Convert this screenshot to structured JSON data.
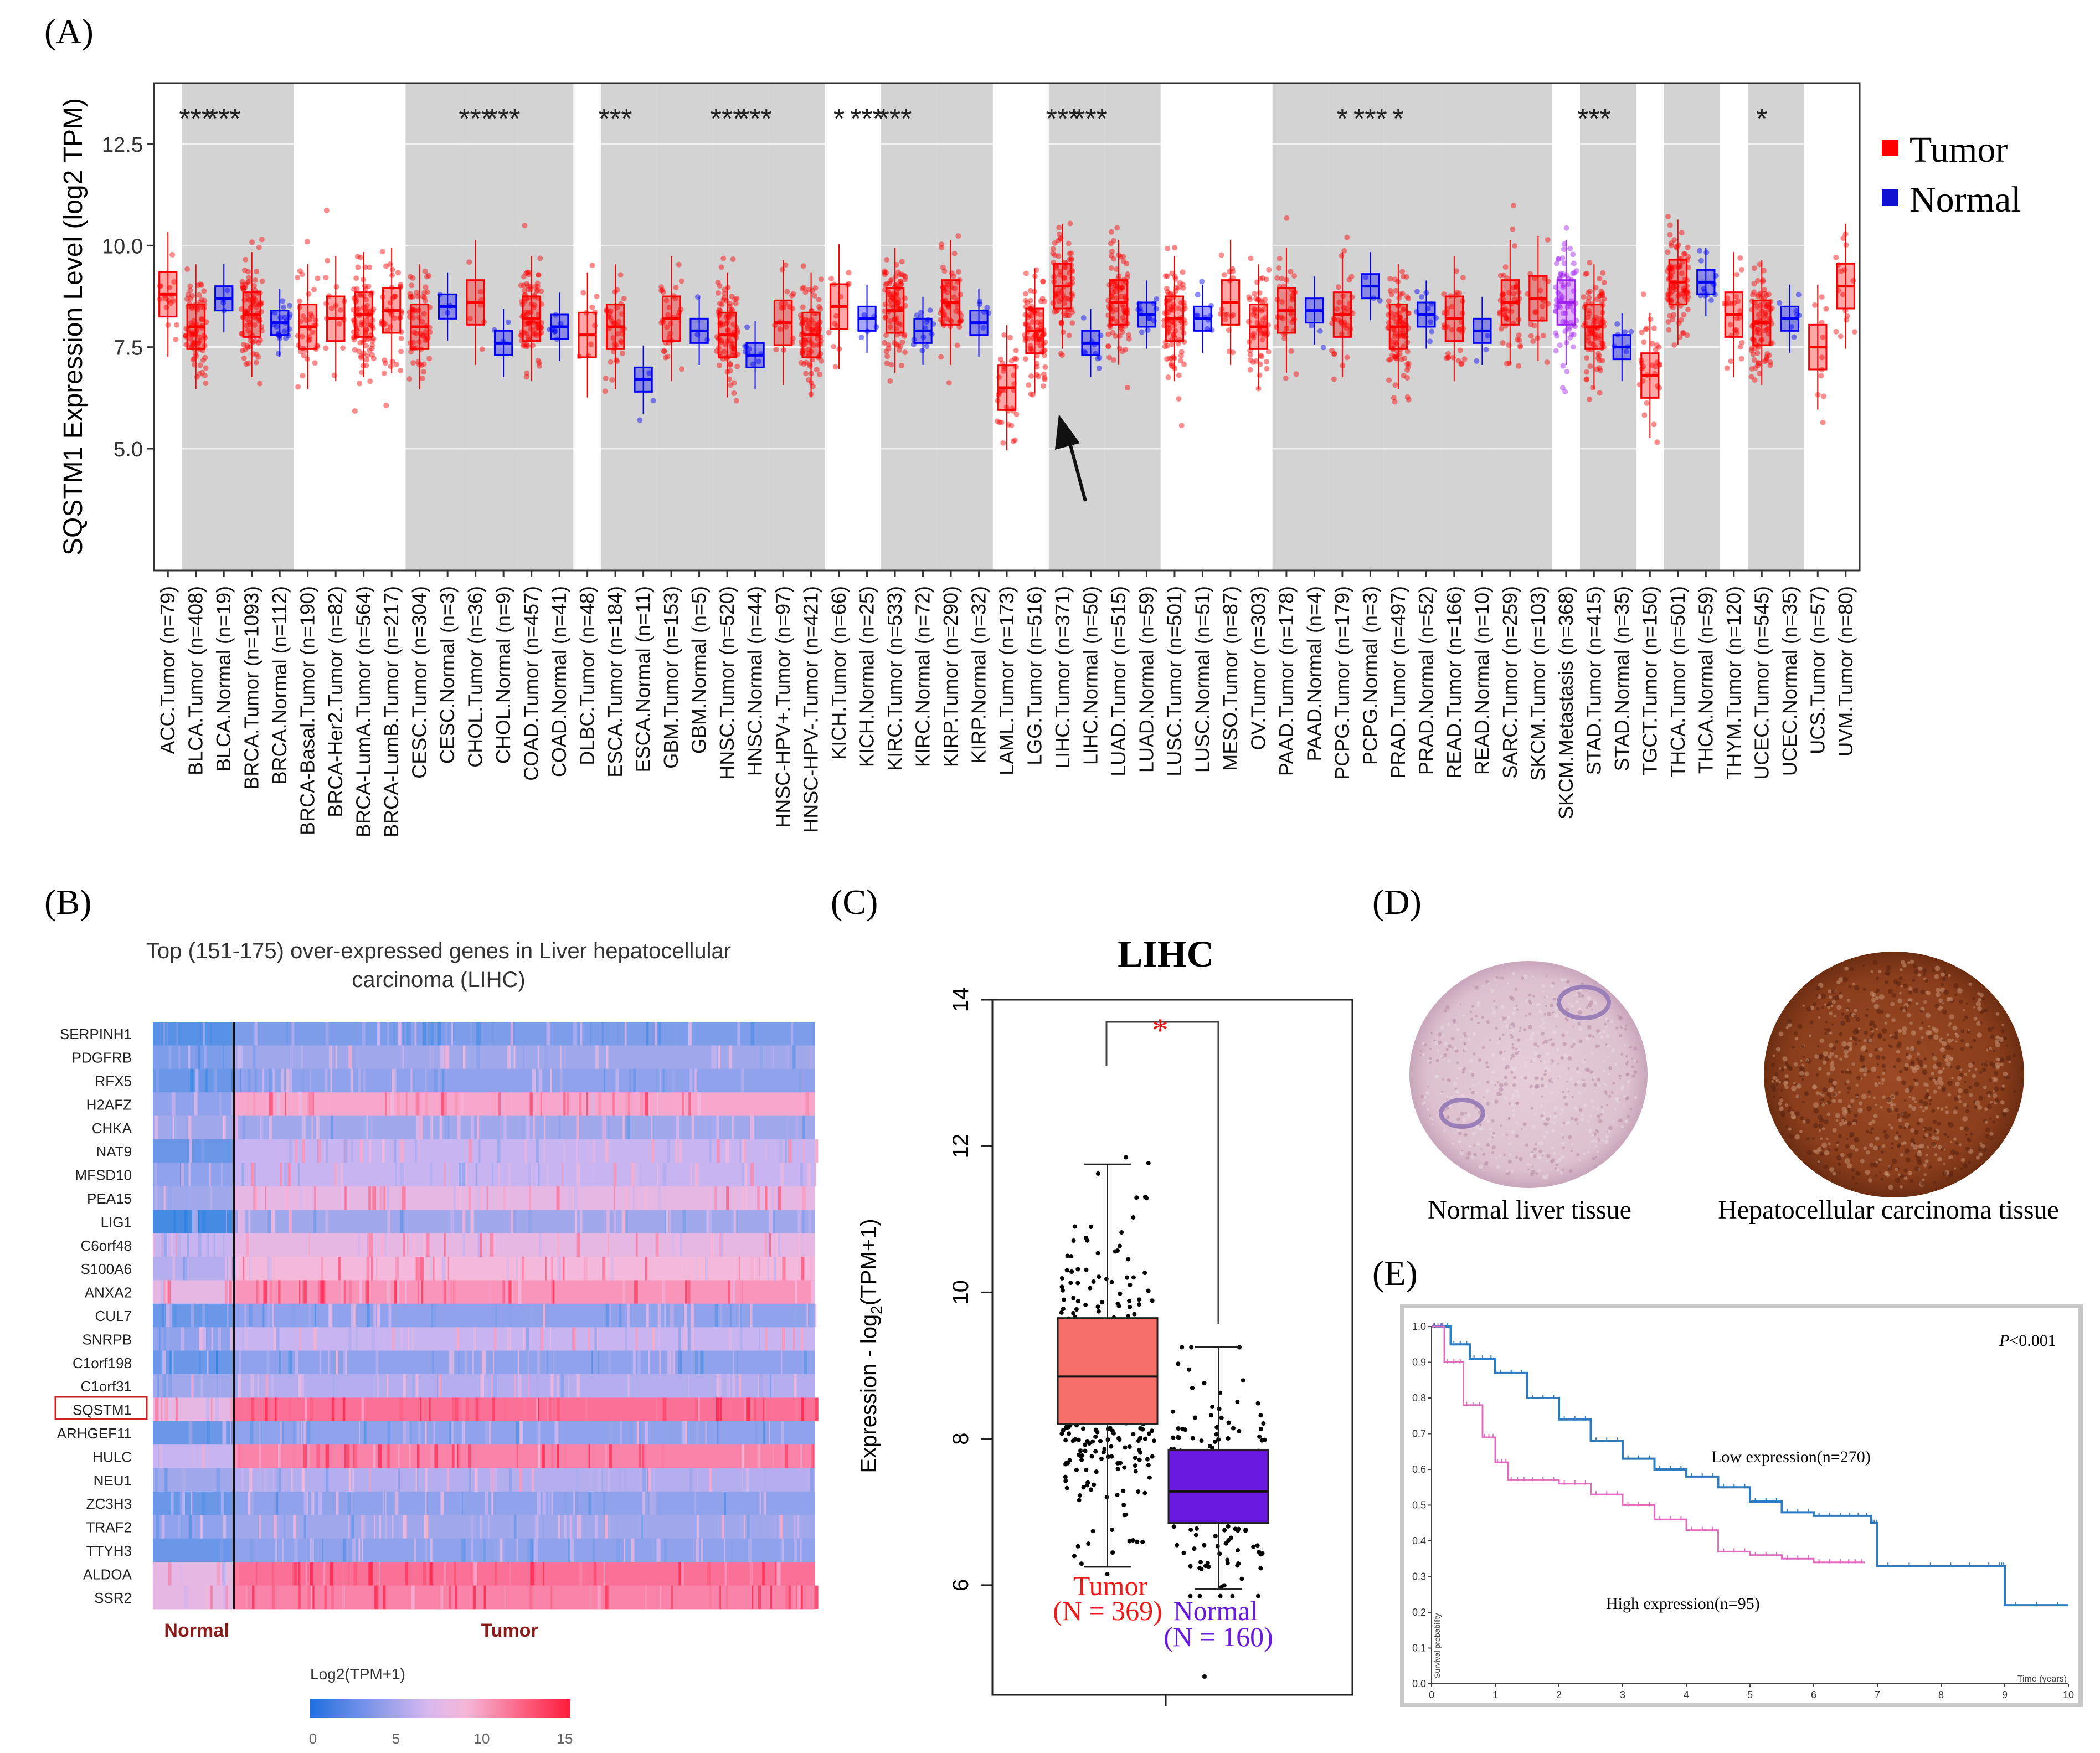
{
  "panel_labels": {
    "a": "(A)",
    "b": "(B)",
    "c": "(C)",
    "d": "(D)",
    "e": "(E)"
  },
  "colors": {
    "tumor": "#ff0000",
    "normal": "#0000ff",
    "metastasis": "#a020f0",
    "shade": "#d3d3d3",
    "heat_low": "#1f7fe0",
    "heat_mid": "#f0c8ef",
    "heat_high": "#ff2b55",
    "gepia_tumor": "#f8706a",
    "gepia_normal": "#6a1adf",
    "km_low": "#2f7bbf",
    "km_high": "#e06cc0"
  },
  "chart_data": [
    {
      "type": "box",
      "panel": "A",
      "ylabel": "SQSTM1 Expression Level (log2 TPM)",
      "yticks": [
        "5.0",
        "7.5",
        "10.0",
        "12.5"
      ],
      "ylim": [
        2.0,
        14.0
      ],
      "legend": [
        "Tumor",
        "Normal"
      ],
      "legend_position": "top-right",
      "categories": [
        "ACC.Tumor (n=79)",
        "BLCA.Tumor (n=408)",
        "BLCA.Normal (n=19)",
        "BRCA.Tumor (n=1093)",
        "BRCA.Normal (n=112)",
        "BRCA-Basal.Tumor (n=190)",
        "BRCA-Her2.Tumor (n=82)",
        "BRCA-LumA.Tumor (n=564)",
        "BRCA-LumB.Tumor (n=217)",
        "CESC.Tumor (n=304)",
        "CESC.Normal (n=3)",
        "CHOL.Tumor (n=36)",
        "CHOL.Normal (n=9)",
        "COAD.Tumor (n=457)",
        "COAD.Normal (n=41)",
        "DLBC.Tumor (n=48)",
        "ESCA.Tumor (n=184)",
        "ESCA.Normal (n=11)",
        "GBM.Tumor (n=153)",
        "GBM.Normal (n=5)",
        "HNSC.Tumor (n=520)",
        "HNSC.Normal (n=44)",
        "HNSC-HPV+.Tumor (n=97)",
        "HNSC-HPV-.Tumor (n=421)",
        "KICH.Tumor (n=66)",
        "KICH.Normal (n=25)",
        "KIRC.Tumor (n=533)",
        "KIRC.Normal (n=72)",
        "KIRP.Tumor (n=290)",
        "KIRP.Normal (n=32)",
        "LAML.Tumor (n=173)",
        "LGG.Tumor (n=516)",
        "LIHC.Tumor (n=371)",
        "LIHC.Normal (n=50)",
        "LUAD.Tumor (n=515)",
        "LUAD.Normal (n=59)",
        "LUSC.Tumor (n=501)",
        "LUSC.Normal (n=51)",
        "MESO.Tumor (n=87)",
        "OV.Tumor (n=303)",
        "PAAD.Tumor (n=178)",
        "PAAD.Normal (n=4)",
        "PCPG.Tumor (n=179)",
        "PCPG.Normal (n=3)",
        "PRAD.Tumor (n=497)",
        "PRAD.Normal (n=52)",
        "READ.Tumor (n=166)",
        "READ.Normal (n=10)",
        "SARC.Tumor (n=259)",
        "SKCM.Tumor (n=103)",
        "SKCM.Metastasis (n=368)",
        "STAD.Tumor (n=415)",
        "STAD.Normal (n=35)",
        "TGCT.Tumor (n=150)",
        "THCA.Tumor (n=501)",
        "THCA.Normal (n=59)",
        "THYM.Tumor (n=120)",
        "UCEC.Tumor (n=545)",
        "UCEC.Normal (n=35)",
        "UCS.Tumor (n=57)",
        "UVM.Tumor (n=80)"
      ],
      "kinds": [
        "T",
        "T",
        "N",
        "T",
        "N",
        "T",
        "T",
        "T",
        "T",
        "T",
        "N",
        "T",
        "N",
        "T",
        "N",
        "T",
        "T",
        "N",
        "T",
        "N",
        "T",
        "N",
        "T",
        "T",
        "T",
        "N",
        "T",
        "N",
        "T",
        "N",
        "T",
        "T",
        "T",
        "N",
        "T",
        "N",
        "T",
        "N",
        "T",
        "T",
        "T",
        "N",
        "T",
        "N",
        "T",
        "N",
        "T",
        "N",
        "T",
        "T",
        "M",
        "T",
        "N",
        "T",
        "T",
        "N",
        "T",
        "T",
        "N",
        "T",
        "T"
      ],
      "medians": [
        8.8,
        8.0,
        8.7,
        8.3,
        8.1,
        8.0,
        8.2,
        8.3,
        8.4,
        8.0,
        8.5,
        8.6,
        7.6,
        8.2,
        8.0,
        7.8,
        8.0,
        6.7,
        8.2,
        7.9,
        7.8,
        7.3,
        8.1,
        7.8,
        8.5,
        8.2,
        8.4,
        7.9,
        8.6,
        8.1,
        6.5,
        7.9,
        9.0,
        7.6,
        8.6,
        8.3,
        8.2,
        8.2,
        8.6,
        8.0,
        8.4,
        8.4,
        8.3,
        9.0,
        8.0,
        8.3,
        8.2,
        7.9,
        8.6,
        8.7,
        8.6,
        8.0,
        7.5,
        6.8,
        9.1,
        9.1,
        8.3,
        8.1,
        8.2,
        7.5,
        9.0
      ],
      "significance": [
        "",
        "***",
        "***",
        "",
        "",
        "",
        "",
        "",
        "",
        "",
        "",
        "***",
        "***",
        "",
        "",
        "",
        "***",
        "",
        "",
        "",
        "***",
        "***",
        "",
        "",
        "*",
        "***",
        "***",
        "",
        "",
        "",
        "",
        "",
        "***",
        "***",
        "",
        "",
        "",
        "",
        "",
        "",
        "",
        "",
        "*",
        "***",
        "*",
        "",
        "",
        "",
        "",
        "",
        "",
        "***",
        "",
        "",
        "",
        "",
        "",
        "*",
        "",
        "",
        ""
      ],
      "shaded_groups": [
        1,
        3,
        9,
        11,
        13,
        16,
        18,
        20,
        22,
        26,
        28,
        32,
        34,
        40,
        42,
        44,
        46,
        48,
        51,
        54,
        57
      ],
      "arrow_target": "LIHC.Tumor (n=371)"
    },
    {
      "type": "heatmap",
      "panel": "B",
      "title_line1": "Top (151-175) over-expressed genes in Liver hepatocellular",
      "title_line2": "carcinoma (LIHC)",
      "genes": [
        "SERPINH1",
        "PDGFRB",
        "RFX5",
        "H2AFZ",
        "CHKA",
        "NAT9",
        "MFSD10",
        "PEA15",
        "LIG1",
        "C6orf48",
        "S100A6",
        "ANXA2",
        "CUL7",
        "SNRPB",
        "C1orf198",
        "C1orf31",
        "SQSTM1",
        "ARHGEF11",
        "HULC",
        "NEU1",
        "ZC3H3",
        "TRAF2",
        "TTYH3",
        "ALDOA",
        "SSR2"
      ],
      "normal_levels": [
        0.15,
        0.25,
        0.2,
        0.3,
        0.35,
        0.2,
        0.3,
        0.35,
        0.1,
        0.45,
        0.4,
        0.55,
        0.2,
        0.3,
        0.2,
        0.35,
        0.55,
        0.2,
        0.45,
        0.35,
        0.2,
        0.3,
        0.2,
        0.55,
        0.55
      ],
      "tumor_levels": [
        0.25,
        0.35,
        0.3,
        0.65,
        0.35,
        0.45,
        0.45,
        0.55,
        0.35,
        0.55,
        0.6,
        0.7,
        0.3,
        0.45,
        0.3,
        0.4,
        0.8,
        0.3,
        0.75,
        0.4,
        0.3,
        0.35,
        0.3,
        0.8,
        0.75
      ],
      "highlight_gene": "SQSTM1",
      "group_labels": [
        "Normal",
        "Tumor"
      ],
      "colorbar_title": "Log2(TPM+1)",
      "colorbar_ticks": [
        "0",
        "5",
        "10",
        "15"
      ]
    },
    {
      "type": "box",
      "panel": "C",
      "title": "LIHC",
      "ylabel": "Expression - log2(TPM+1)",
      "yticks": [
        "6",
        "8",
        "10",
        "12",
        "14"
      ],
      "ylim": [
        4.5,
        14.0
      ],
      "groups": [
        {
          "name": "Tumor",
          "n_label": "(N = 369)",
          "q1": 8.2,
          "median": 8.85,
          "q3": 9.65,
          "whisker_low": 6.25,
          "whisker_high": 11.75
        },
        {
          "name": "Normal",
          "n_label": "(N = 160)",
          "q1": 6.85,
          "median": 7.28,
          "q3": 7.85,
          "whisker_low": 5.95,
          "whisker_high": 9.25
        }
      ],
      "significance": "*"
    },
    {
      "type": "image",
      "panel": "D",
      "captions": [
        "Normal liver tissue",
        "Hepatocellular carcinoma tissue"
      ]
    },
    {
      "type": "line",
      "panel": "E",
      "pvalue_prefix": "P",
      "pvalue_rest": "<0.001",
      "xlabel": "Time (years)",
      "ylabel": "Survival probability",
      "xlim": [
        0,
        10
      ],
      "ylim": [
        0,
        1
      ],
      "xticks": [
        "0",
        "1",
        "2",
        "3",
        "4",
        "5",
        "6",
        "7",
        "8",
        "9",
        "10"
      ],
      "yticks": [
        "0.0",
        "0.1",
        "0.2",
        "0.3",
        "0.4",
        "0.5",
        "0.6",
        "0.7",
        "0.8",
        "0.9",
        "1.0"
      ],
      "series": [
        {
          "name": "Low expression(n=270)",
          "x": [
            0,
            0.3,
            0.6,
            1.0,
            1.5,
            2.0,
            2.5,
            3.0,
            3.5,
            4.0,
            4.5,
            5.0,
            5.5,
            6.0,
            6.5,
            6.9,
            7.0,
            8.0,
            8.9,
            9.0,
            10.0
          ],
          "y": [
            1.0,
            0.95,
            0.91,
            0.87,
            0.8,
            0.74,
            0.68,
            0.63,
            0.6,
            0.58,
            0.55,
            0.51,
            0.48,
            0.47,
            0.47,
            0.45,
            0.33,
            0.33,
            0.33,
            0.22,
            0.22
          ]
        },
        {
          "name": "High expression(n=95)",
          "x": [
            0,
            0.2,
            0.5,
            0.8,
            1.0,
            1.2,
            1.5,
            2.0,
            2.5,
            3.0,
            3.5,
            4.0,
            4.5,
            5.0,
            5.5,
            6.0,
            6.5,
            6.8
          ],
          "y": [
            1.0,
            0.9,
            0.78,
            0.69,
            0.62,
            0.57,
            0.57,
            0.56,
            0.53,
            0.5,
            0.46,
            0.43,
            0.37,
            0.36,
            0.35,
            0.34,
            0.34,
            0.34
          ]
        }
      ]
    }
  ]
}
